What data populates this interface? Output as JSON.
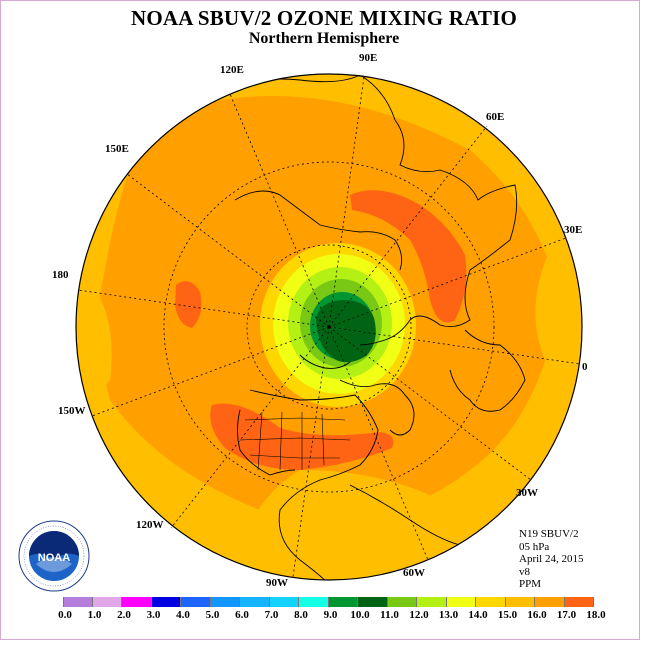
{
  "title": "NOAA SBUV/2 OZONE MIXING RATIO",
  "subtitle": "Northern Hemisphere",
  "info": {
    "satellite": "N19 SBUV/2",
    "level": "05 hPa",
    "date": "April 24, 2015",
    "version": "v8",
    "units": "PPM"
  },
  "longitude_labels": [
    {
      "id": "lon-90e",
      "text": "90E"
    },
    {
      "id": "lon-60e",
      "text": "60E"
    },
    {
      "id": "lon-30e",
      "text": "30E"
    },
    {
      "id": "lon-0",
      "text": "0"
    },
    {
      "id": "lon-30w",
      "text": "30W"
    },
    {
      "id": "lon-60w",
      "text": "60W"
    },
    {
      "id": "lon-90w",
      "text": "90W"
    },
    {
      "id": "lon-120w",
      "text": "120W"
    },
    {
      "id": "lon-150w",
      "text": "150W"
    },
    {
      "id": "lon-180",
      "text": "180"
    },
    {
      "id": "lon-150e",
      "text": "150E"
    },
    {
      "id": "lon-120e",
      "text": "120E"
    }
  ],
  "colorbar": {
    "colors": [
      "#b57edc",
      "#e0a8e8",
      "#ff00ff",
      "#0000e0",
      "#1e64ff",
      "#1496ff",
      "#14b4ff",
      "#14d2ff",
      "#14ffe6",
      "#009632",
      "#006414",
      "#78c814",
      "#b4f014",
      "#f0ff14",
      "#ffd700",
      "#ffbe00",
      "#ffa000",
      "#ff6414",
      "#ff0000",
      "#d20000",
      "#8c5a3c"
    ],
    "ticks": [
      "0.0",
      "1.0",
      "2.0",
      "3.0",
      "4.0",
      "5.0",
      "6.0",
      "7.0",
      "8.0",
      "9.0",
      "10.0",
      "11.0",
      "12.0",
      "13.0",
      "14.0",
      "15.0",
      "16.0",
      "17.0",
      "18.0"
    ]
  },
  "logo": {
    "text": "NOAA",
    "ring_text": "NATIONAL OCEANIC AND ATMOSPHERIC ADMINISTRATION · U.S. DEPARTMENT OF COMMERCE"
  }
}
